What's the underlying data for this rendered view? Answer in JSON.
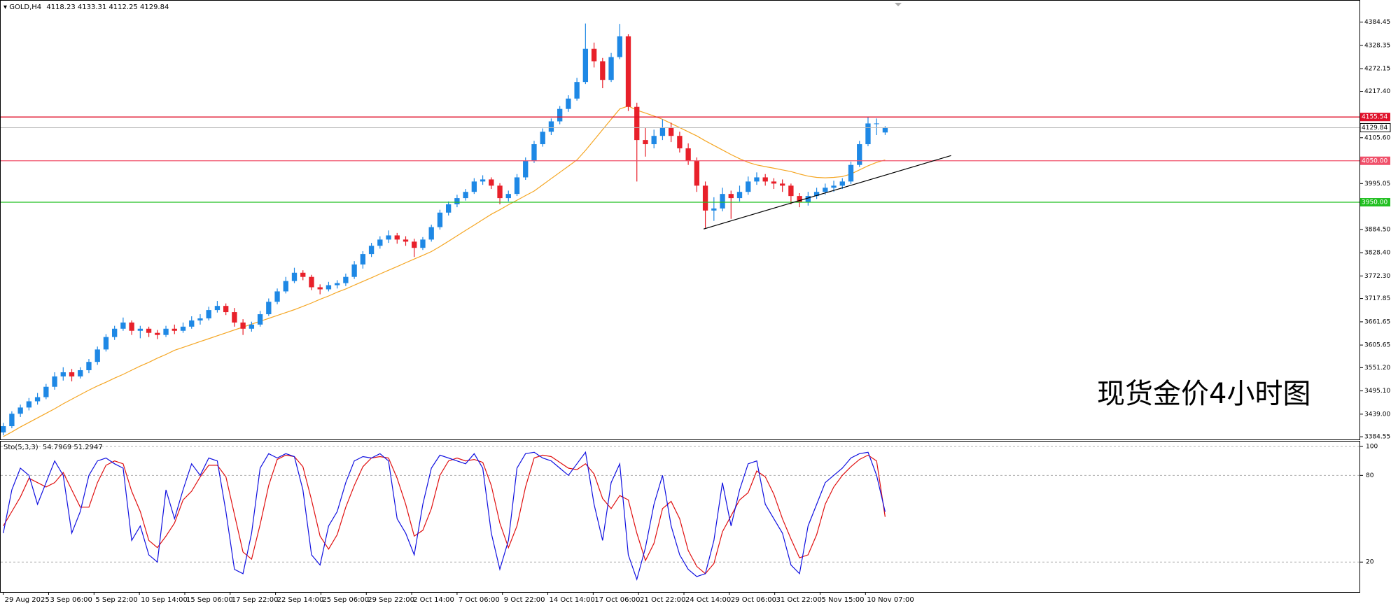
{
  "chart_data": [
    {
      "type": "candlestick",
      "symbol": "GOLD,H4",
      "up_color": "#1e88e5",
      "down_color": "#e8202a",
      "xlim": [
        -0.3,
        158.4
      ],
      "ylim": [
        3378,
        4436
      ],
      "yticks": [
        4384.45,
        4328.35,
        4272.15,
        {
          "value": 4217.4,
          "label": "4217.40"
        },
        {
          "value": 4105.6,
          "label": "4105.60"
        },
        3995.05,
        {
          "value": 3884.5,
          "label": "3884.50"
        },
        {
          "value": 3828.4,
          "label": "3828.40"
        },
        {
          "value": 3772.3,
          "label": "3772.30"
        },
        3717.85,
        3661.65,
        3605.65,
        {
          "value": 3551.2,
          "label": "3551.20"
        },
        {
          "value": 3495.1,
          "label": "3495.10"
        },
        {
          "value": 3439,
          "label": "3439.00"
        },
        3384.55
      ],
      "xticks": [
        {
          "value": 0,
          "label": "29 Aug 2025"
        },
        {
          "value": 5.3,
          "label": "3 Sep 06:00"
        },
        {
          "value": 10.6,
          "label": "5 Sep 22:00"
        },
        {
          "value": 15.9,
          "label": "10 Sep 14:00"
        },
        {
          "value": 21.2,
          "label": "15 Sep 06:00"
        },
        {
          "value": 26.5,
          "label": "17 Sep 22:00"
        },
        {
          "value": 31.8,
          "label": "22 Sep 14:00"
        },
        {
          "value": 37.1,
          "label": "25 Sep 06:00"
        },
        {
          "value": 42.4,
          "label": "29 Sep 22:00"
        },
        {
          "value": 47.7,
          "label": "2 Oct 14:00"
        },
        {
          "value": 53,
          "label": "7 Oct 06:00"
        },
        {
          "value": 58.3,
          "label": "9 Oct 22:00"
        },
        {
          "value": 63.6,
          "label": "14 Oct 14:00"
        },
        {
          "value": 68.9,
          "label": "17 Oct 06:00"
        },
        {
          "value": 74.2,
          "label": "21 Oct 22:00"
        },
        {
          "value": 79.5,
          "label": "24 Oct 14:00"
        },
        {
          "value": 84.8,
          "label": "29 Oct 06:00"
        },
        {
          "value": 90.1,
          "label": "31 Oct 22:00"
        },
        {
          "value": 95.4,
          "label": "5 Nov 15:00"
        },
        {
          "value": 100.7,
          "label": "10 Nov 07:00"
        }
      ],
      "ohlc": [
        [
          3395,
          3418,
          3388,
          3410
        ],
        [
          3410,
          3446,
          3405,
          3440
        ],
        [
          3440,
          3462,
          3432,
          3455
        ],
        [
          3455,
          3478,
          3448,
          3470
        ],
        [
          3470,
          3490,
          3462,
          3480
        ],
        [
          3480,
          3512,
          3475,
          3505
        ],
        [
          3505,
          3540,
          3498,
          3530
        ],
        [
          3530,
          3552,
          3520,
          3540
        ],
        [
          3540,
          3548,
          3518,
          3530
        ],
        [
          3530,
          3552,
          3525,
          3545
        ],
        [
          3545,
          3572,
          3538,
          3565
        ],
        [
          3565,
          3602,
          3558,
          3595
        ],
        [
          3595,
          3632,
          3590,
          3625
        ],
        [
          3625,
          3652,
          3618,
          3645
        ],
        [
          3645,
          3672,
          3640,
          3660
        ],
        [
          3660,
          3665,
          3630,
          3640
        ],
        [
          3640,
          3652,
          3622,
          3645
        ],
        [
          3645,
          3650,
          3625,
          3635
        ],
        [
          3635,
          3642,
          3620,
          3630
        ],
        [
          3630,
          3652,
          3625,
          3645
        ],
        [
          3645,
          3655,
          3632,
          3640
        ],
        [
          3640,
          3660,
          3635,
          3650
        ],
        [
          3650,
          3675,
          3645,
          3665
        ],
        [
          3665,
          3680,
          3655,
          3670
        ],
        [
          3670,
          3698,
          3665,
          3690
        ],
        [
          3690,
          3712,
          3684,
          3700
        ],
        [
          3700,
          3706,
          3678,
          3685
        ],
        [
          3685,
          3695,
          3650,
          3660
        ],
        [
          3660,
          3668,
          3630,
          3645
        ],
        [
          3645,
          3662,
          3638,
          3655
        ],
        [
          3655,
          3688,
          3650,
          3680
        ],
        [
          3680,
          3718,
          3676,
          3710
        ],
        [
          3710,
          3742,
          3704,
          3735
        ],
        [
          3735,
          3770,
          3730,
          3760
        ],
        [
          3760,
          3792,
          3755,
          3780
        ],
        [
          3780,
          3786,
          3762,
          3770
        ],
        [
          3770,
          3775,
          3738,
          3745
        ],
        [
          3745,
          3752,
          3728,
          3740
        ],
        [
          3740,
          3758,
          3735,
          3750
        ],
        [
          3750,
          3762,
          3742,
          3755
        ],
        [
          3755,
          3778,
          3748,
          3770
        ],
        [
          3770,
          3808,
          3765,
          3800
        ],
        [
          3800,
          3832,
          3790,
          3825
        ],
        [
          3825,
          3852,
          3818,
          3845
        ],
        [
          3845,
          3868,
          3838,
          3860
        ],
        [
          3860,
          3882,
          3852,
          3870
        ],
        [
          3870,
          3876,
          3850,
          3860
        ],
        [
          3860,
          3868,
          3845,
          3855
        ],
        [
          3855,
          3862,
          3818,
          3840
        ],
        [
          3840,
          3866,
          3835,
          3860
        ],
        [
          3860,
          3896,
          3855,
          3890
        ],
        [
          3890,
          3932,
          3884,
          3925
        ],
        [
          3925,
          3952,
          3918,
          3945
        ],
        [
          3945,
          3968,
          3938,
          3960
        ],
        [
          3960,
          3982,
          3954,
          3975
        ],
        [
          3975,
          4008,
          3970,
          4000
        ],
        [
          4000,
          4015,
          3992,
          4005
        ],
        [
          4005,
          4010,
          3982,
          3990
        ],
        [
          3990,
          3996,
          3945,
          3960
        ],
        [
          3960,
          3978,
          3952,
          3970
        ],
        [
          3970,
          4018,
          3965,
          4010
        ],
        [
          4010,
          4058,
          4004,
          4050
        ],
        [
          4050,
          4098,
          4045,
          4090
        ],
        [
          4090,
          4128,
          4084,
          4120
        ],
        [
          4120,
          4152,
          4112,
          4145
        ],
        [
          4145,
          4182,
          4138,
          4175
        ],
        [
          4175,
          4208,
          4168,
          4200
        ],
        [
          4200,
          4250,
          4195,
          4240
        ],
        [
          4240,
          4381,
          4235,
          4320
        ],
        [
          4320,
          4335,
          4275,
          4290
        ],
        [
          4290,
          4298,
          4225,
          4245
        ],
        [
          4245,
          4310,
          4240,
          4300
        ],
        [
          4300,
          4380,
          4295,
          4350
        ],
        [
          4350,
          4355,
          4170,
          4180
        ],
        [
          4180,
          4190,
          4000,
          4100
        ],
        [
          4100,
          4130,
          4060,
          4090
        ],
        [
          4090,
          4125,
          4080,
          4110
        ],
        [
          4110,
          4150,
          4100,
          4130
        ],
        [
          4130,
          4142,
          4095,
          4110
        ],
        [
          4110,
          4120,
          4070,
          4080
        ],
        [
          4080,
          4092,
          4040,
          4050
        ],
        [
          4050,
          4058,
          3975,
          3990
        ],
        [
          3990,
          4000,
          3888,
          3930
        ],
        [
          3930,
          3962,
          3905,
          3935
        ],
        [
          3935,
          3985,
          3928,
          3970
        ],
        [
          3970,
          3978,
          3910,
          3960
        ],
        [
          3960,
          3990,
          3952,
          3975
        ],
        [
          3975,
          4012,
          3968,
          4000
        ],
        [
          4000,
          4022,
          3992,
          4010
        ],
        [
          4010,
          4018,
          3990,
          4000
        ],
        [
          4000,
          4008,
          3982,
          3995
        ],
        [
          3995,
          4005,
          3975,
          3990
        ],
        [
          3990,
          3995,
          3945,
          3965
        ],
        [
          3965,
          3972,
          3938,
          3950
        ],
        [
          3950,
          3975,
          3942,
          3965
        ],
        [
          3965,
          3985,
          3958,
          3975
        ],
        [
          3975,
          3995,
          3968,
          3985
        ],
        [
          3985,
          4002,
          3975,
          3990
        ],
        [
          3990,
          4008,
          3982,
          4000
        ],
        [
          4000,
          4048,
          3994,
          4040
        ],
        [
          4040,
          4098,
          4035,
          4090
        ],
        [
          4090,
          4155,
          4085,
          4140
        ],
        [
          4140,
          4152,
          4112,
          4140
        ],
        [
          4118.23,
          4133.31,
          4112.25,
          4129.84
        ]
      ],
      "ma": {
        "color": "#f5a623",
        "values": [
          3385,
          3396,
          3408,
          3419,
          3430,
          3441,
          3452,
          3464,
          3475,
          3486,
          3497,
          3507,
          3516,
          3526,
          3535,
          3545,
          3555,
          3564,
          3574,
          3583,
          3593,
          3600,
          3607,
          3614,
          3621,
          3628,
          3635,
          3642,
          3649,
          3656,
          3663,
          3670,
          3677,
          3684,
          3691,
          3699,
          3707,
          3716,
          3724,
          3733,
          3741,
          3750,
          3759,
          3768,
          3777,
          3786,
          3795,
          3804,
          3813,
          3822,
          3831,
          3843,
          3856,
          3869,
          3882,
          3895,
          3908,
          3921,
          3932,
          3944,
          3955,
          3966,
          3977,
          3992,
          4007,
          4022,
          4037,
          4052,
          4075,
          4100,
          4125,
          4150,
          4175,
          4182,
          4172,
          4165,
          4158,
          4150,
          4140,
          4130,
          4120,
          4110,
          4098,
          4087,
          4076,
          4065,
          4055,
          4046,
          4040,
          4036,
          4032,
          4028,
          4024,
          4018,
          4013,
          4010,
          4009,
          4010,
          4012,
          4018,
          4028,
          4038,
          4046,
          4052
        ]
      },
      "levels": [
        {
          "value": 4155.54,
          "label": "4155.54",
          "color": "#e0102a"
        },
        {
          "value": 4050,
          "label": "4050.00",
          "color": "#f0506a"
        },
        {
          "value": 3950,
          "label": "3950.00",
          "color": "#22c022"
        }
      ],
      "price_line_color": "#b8b8b8",
      "trendline": {
        "x": [
          81.8,
          110.7
        ],
        "y": [
          3885.5,
          4062.5
        ],
        "color": "#000000"
      },
      "annotation": "现货金价4小时图"
    },
    {
      "type": "line",
      "title": "Sto(5,3,3)",
      "ylim": [
        -0.7,
        103.4
      ],
      "yticks": [
        20,
        80,
        100
      ],
      "series": [
        {
          "color": "#1010e0",
          "values": [
            40,
            70,
            85,
            80,
            60,
            75,
            90,
            80,
            40,
            55,
            80,
            90,
            92,
            88,
            85,
            35,
            45,
            25,
            20,
            70,
            50,
            70,
            88,
            80,
            92,
            90,
            55,
            15,
            12,
            40,
            85,
            95,
            92,
            95,
            93,
            70,
            25,
            18,
            45,
            55,
            75,
            90,
            93,
            92,
            95,
            90,
            50,
            40,
            25,
            60,
            85,
            94,
            92,
            90,
            88,
            95,
            85,
            40,
            15,
            35,
            85,
            95,
            96,
            92,
            90,
            85,
            80,
            88,
            96,
            60,
            35,
            75,
            88,
            25,
            8,
            30,
            60,
            80,
            45,
            25,
            15,
            10,
            12,
            35,
            75,
            45,
            70,
            88,
            90,
            60,
            50,
            40,
            18,
            12,
            45,
            60,
            75,
            80,
            85,
            92,
            95,
            96,
            80,
            54.7969
          ]
        },
        {
          "color": "#e01010",
          "values": [
            45,
            55,
            65,
            78,
            75,
            72,
            75,
            82,
            70,
            58,
            58,
            75,
            87,
            90,
            88,
            69,
            55,
            35,
            30,
            38,
            47,
            63,
            69,
            79,
            87,
            87,
            79,
            53,
            27,
            22,
            46,
            73,
            91,
            94,
            93,
            86,
            63,
            38,
            29,
            39,
            58,
            73,
            86,
            92,
            93,
            92,
            78,
            60,
            38,
            42,
            57,
            80,
            90,
            92,
            90,
            91,
            89,
            73,
            47,
            30,
            45,
            72,
            92,
            94,
            93,
            89,
            85,
            84,
            88,
            81,
            64,
            57,
            66,
            63,
            40,
            21,
            33,
            57,
            62,
            50,
            28,
            17,
            12,
            19,
            41,
            52,
            63,
            68,
            83,
            79,
            67,
            50,
            36,
            23,
            25,
            39,
            60,
            72,
            80,
            86,
            91,
            94,
            90,
            51.2947
          ]
        }
      ]
    }
  ]
}
